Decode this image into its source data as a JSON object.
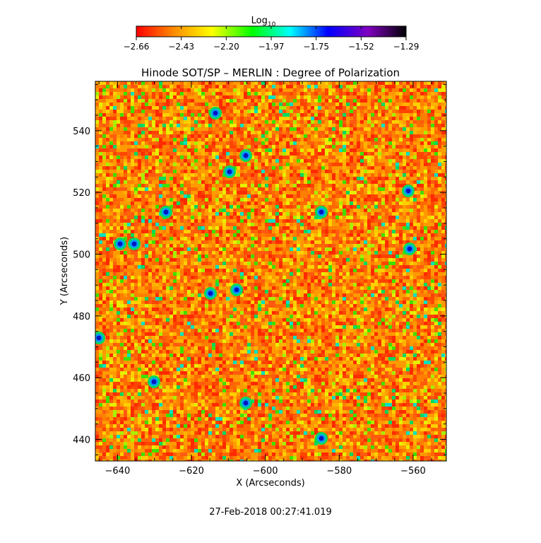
{
  "title": "Hinode SOT/SP – MERLIN : Degree of Polarization",
  "timestamp": "27-Feb-2018 00:27:41.019",
  "colorbar": {
    "label_main": "Log",
    "label_sub": "10",
    "ticks": [
      "−2.66",
      "−2.43",
      "−2.20",
      "−1.97",
      "−1.75",
      "−1.52",
      "−1.29"
    ],
    "range": [
      -2.66,
      -1.29
    ],
    "colors": [
      "#ff0000",
      "#ff8c00",
      "#ffff00",
      "#00ff00",
      "#00ffff",
      "#0000ff",
      "#8000c0",
      "#000000"
    ]
  },
  "axes": {
    "xlabel": "X (Arcseconds)",
    "ylabel": "Y (Arcseconds)",
    "xticks": [
      "−640",
      "−620",
      "−600",
      "−580",
      "−560"
    ],
    "yticks": [
      "440",
      "460",
      "480",
      "500",
      "520",
      "540"
    ],
    "xlim": [
      -646,
      -551
    ],
    "ylim": [
      433,
      556
    ]
  },
  "map": {
    "background_color": "#ff5a1e",
    "description_colors": {
      "low": "#ff3a00",
      "mid": "#ffb000",
      "high": "#00d000",
      "peak": "#0000ff"
    }
  }
}
